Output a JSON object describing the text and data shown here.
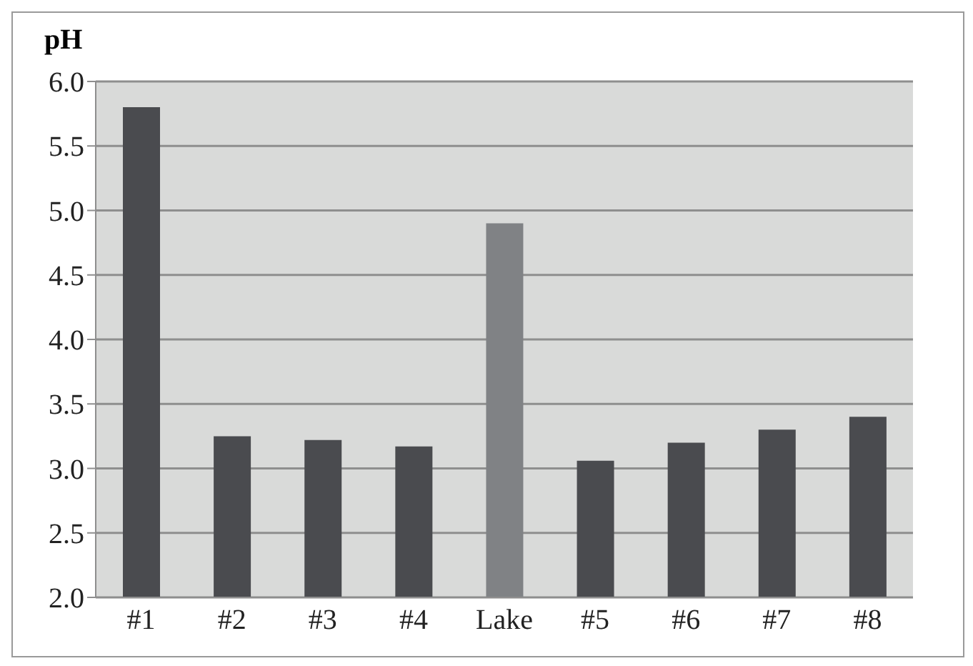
{
  "chart_data": {
    "type": "bar",
    "ylabel": "pH",
    "categories": [
      "#1",
      "#2",
      "#3",
      "#4",
      "Lake",
      "#5",
      "#6",
      "#7",
      "#8"
    ],
    "values": [
      5.8,
      3.25,
      3.22,
      3.17,
      4.9,
      3.06,
      3.2,
      3.3,
      3.4
    ],
    "colors": [
      "#4a4b4f",
      "#4a4b4f",
      "#4a4b4f",
      "#4a4b4f",
      "#808285",
      "#4a4b4f",
      "#4a4b4f",
      "#4a4b4f",
      "#4a4b4f"
    ],
    "ylim": [
      2,
      6
    ],
    "yticks": [
      {
        "value": 2,
        "label": "2.0"
      },
      2.5,
      {
        "value": 3,
        "label": "3.0"
      },
      3.5,
      {
        "value": 4,
        "label": "4.0"
      },
      4.5,
      {
        "value": 5,
        "label": "5.0"
      },
      5.5,
      {
        "value": 6,
        "label": "6.0"
      }
    ],
    "grid": "y",
    "legend": false
  }
}
